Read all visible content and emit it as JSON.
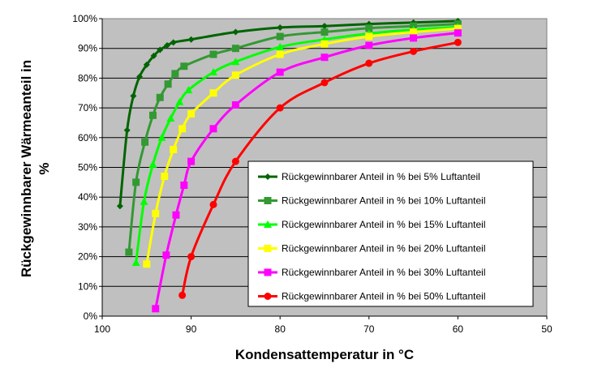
{
  "chart_data": {
    "type": "line",
    "title": "",
    "xlabel": "Kondensattemperatur in °C",
    "ylabel_lines": [
      "Rückgewinnbarer Wärmeanteil in",
      "%"
    ],
    "xlim": [
      100,
      50
    ],
    "ylim": [
      0,
      100
    ],
    "x_ticks": [
      "100",
      "90",
      "80",
      "70",
      "60",
      "50"
    ],
    "x_tick_values": [
      100,
      90,
      80,
      70,
      60,
      50
    ],
    "y_ticks": [
      "0%",
      "10%",
      "20%",
      "30%",
      "40%",
      "50%",
      "60%",
      "70%",
      "80%",
      "90%",
      "100%"
    ],
    "y_tick_values": [
      0,
      10,
      20,
      30,
      40,
      50,
      60,
      70,
      80,
      90,
      100
    ],
    "grid": true,
    "plot_background": "#c0c0c0",
    "legend_position": "lower-right",
    "series": [
      {
        "name": "Rückgewinnbarer Anteil  in % bei 5% Luftanteil",
        "color": "#006400",
        "marker": "diamond",
        "points": [
          [
            98,
            37
          ],
          [
            97.2,
            62.5
          ],
          [
            96.5,
            74
          ],
          [
            95.8,
            80.5
          ],
          [
            95,
            84.5
          ],
          [
            94.2,
            87.5
          ],
          [
            93.5,
            89.5
          ],
          [
            92.7,
            91
          ],
          [
            92,
            92
          ],
          [
            90,
            93
          ],
          [
            85,
            95.5
          ],
          [
            80,
            97
          ],
          [
            75,
            97.5
          ],
          [
            70,
            98.2
          ],
          [
            65,
            98.7
          ],
          [
            60,
            99.2
          ]
        ]
      },
      {
        "name": "Rückgewinnbarer Anteil  in % bei 10% Luftanteil",
        "color": "#339933",
        "marker": "square",
        "points": [
          [
            97,
            21.5
          ],
          [
            96.2,
            45
          ],
          [
            95.2,
            58.5
          ],
          [
            94.3,
            67.5
          ],
          [
            93.5,
            73.5
          ],
          [
            92.6,
            78
          ],
          [
            91.8,
            81.5
          ],
          [
            90.8,
            84
          ],
          [
            87.5,
            88
          ],
          [
            85,
            90
          ],
          [
            80,
            94
          ],
          [
            75,
            95.5
          ],
          [
            70,
            96.8
          ],
          [
            65,
            97.5
          ],
          [
            60,
            98.2
          ]
        ]
      },
      {
        "name": "Rückgewinnbarer Anteil  in % bei 15% Luftanteil",
        "color": "#00ff00",
        "marker": "triangle",
        "points": [
          [
            96.2,
            18
          ],
          [
            95.3,
            38.5
          ],
          [
            94.3,
            51
          ],
          [
            93.3,
            60
          ],
          [
            92.3,
            66.5
          ],
          [
            91.3,
            72
          ],
          [
            90.3,
            76
          ],
          [
            87.5,
            82
          ],
          [
            85,
            85.5
          ],
          [
            80,
            90.5
          ],
          [
            75,
            93
          ],
          [
            70,
            95
          ],
          [
            65,
            96.3
          ],
          [
            60,
            97.2
          ]
        ]
      },
      {
        "name": "Rückgewinnbarer Anteil  in % bei 20% Luftanteil",
        "color": "#ffff00",
        "marker": "square",
        "points": [
          [
            95,
            17.5
          ],
          [
            94,
            34.5
          ],
          [
            93,
            47
          ],
          [
            92,
            56
          ],
          [
            91,
            63
          ],
          [
            90,
            68
          ],
          [
            87.5,
            75
          ],
          [
            85,
            81
          ],
          [
            80,
            88
          ],
          [
            75,
            91.5
          ],
          [
            70,
            94
          ],
          [
            65,
            95.5
          ],
          [
            60,
            96.7
          ]
        ]
      },
      {
        "name": "Rückgewinnbarer Anteil  in % bei 30% Luftanteil",
        "color": "#ff00ff",
        "marker": "square",
        "points": [
          [
            94,
            2.5
          ],
          [
            92.8,
            20.5
          ],
          [
            91.7,
            34
          ],
          [
            90.8,
            44
          ],
          [
            90,
            52
          ],
          [
            87.5,
            63
          ],
          [
            85,
            71
          ],
          [
            80,
            82
          ],
          [
            75,
            87
          ],
          [
            70,
            91
          ],
          [
            65,
            93.5
          ],
          [
            60,
            95.2
          ]
        ]
      },
      {
        "name": "Rückgewinnbarer Anteil  in % bei 50% Luftanteil",
        "color": "#ff0000",
        "marker": "circle",
        "points": [
          [
            91,
            7
          ],
          [
            90,
            20
          ],
          [
            87.5,
            37.5
          ],
          [
            85,
            52
          ],
          [
            80,
            70
          ],
          [
            75,
            78.5
          ],
          [
            70,
            85
          ],
          [
            65,
            89
          ],
          [
            60,
            92
          ]
        ]
      }
    ]
  }
}
